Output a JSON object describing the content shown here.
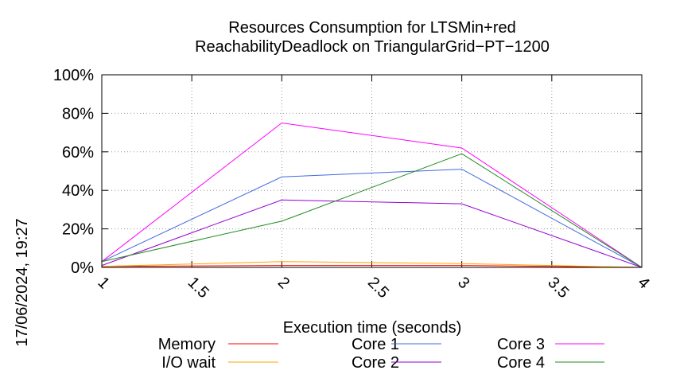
{
  "timestamp": "17/06/2024, 19:27",
  "chart_data": {
    "type": "line",
    "title": [
      "Resources Consumption for LTSMin+red",
      "ReachabilityDeadlock on TriangularGrid−PT−1200"
    ],
    "xlabel": "Execution time (seconds)",
    "ylabel": "",
    "xlim": [
      1,
      4
    ],
    "ylim": [
      0,
      100
    ],
    "xticks": [
      1,
      1.5,
      2,
      2.5,
      3,
      3.5,
      4
    ],
    "xtick_labels": [
      "1",
      "1.5",
      "2",
      "2.5",
      "3",
      "3.5",
      "4"
    ],
    "yticks": [
      0,
      20,
      40,
      60,
      80,
      100
    ],
    "ytick_labels": [
      "0%",
      "20%",
      "40%",
      "60%",
      "80%",
      "100%"
    ],
    "grid": true,
    "legend_position": "bottom",
    "series": [
      {
        "name": "Memory",
        "color": "#ff0000",
        "x": [
          1,
          2,
          3,
          4
        ],
        "y": [
          0.5,
          1,
          1,
          0
        ]
      },
      {
        "name": "I/O wait",
        "color": "#ffa500",
        "x": [
          1,
          2,
          3,
          4
        ],
        "y": [
          0.5,
          3,
          2,
          0
        ]
      },
      {
        "name": "Core 1",
        "color": "#4169e1",
        "x": [
          1,
          2,
          3,
          4
        ],
        "y": [
          3,
          47,
          51,
          0
        ]
      },
      {
        "name": "Core 2",
        "color": "#9400d3",
        "x": [
          1,
          2,
          3,
          4
        ],
        "y": [
          1,
          35,
          33,
          0
        ]
      },
      {
        "name": "Core 3",
        "color": "#ff00ff",
        "x": [
          1,
          2,
          3,
          4
        ],
        "y": [
          3,
          75,
          62,
          0
        ]
      },
      {
        "name": "Core 4",
        "color": "#228b22",
        "x": [
          1,
          2,
          3,
          4
        ],
        "y": [
          3,
          24,
          59,
          0
        ]
      }
    ]
  }
}
